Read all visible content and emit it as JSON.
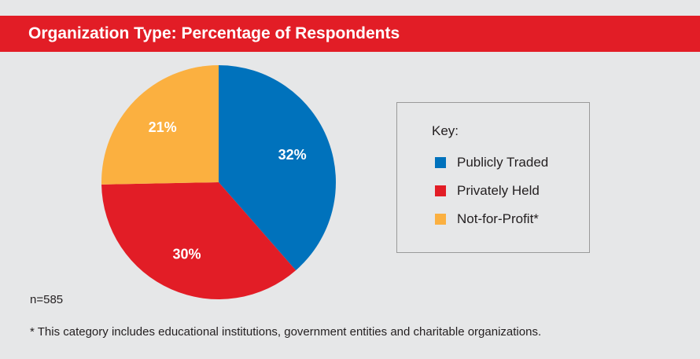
{
  "header": {
    "title": "Organization Type: Percentage of Respondents"
  },
  "chart_data": {
    "type": "pie",
    "slices": [
      {
        "name": "Publicly Traded",
        "value": 32,
        "label": "32%",
        "color": "#0072bc"
      },
      {
        "name": "Privately Held",
        "value": 30,
        "label": "30%",
        "color": "#e21d26"
      },
      {
        "name": "Not-for-Profit*",
        "value": 21,
        "label": "21%",
        "color": "#fbb040"
      }
    ],
    "legend": {
      "title": "Key:",
      "placement": "right"
    }
  },
  "notes": {
    "sample": "n=585",
    "footnote": "* This category includes educational institutions, government entities and charitable organizations."
  }
}
